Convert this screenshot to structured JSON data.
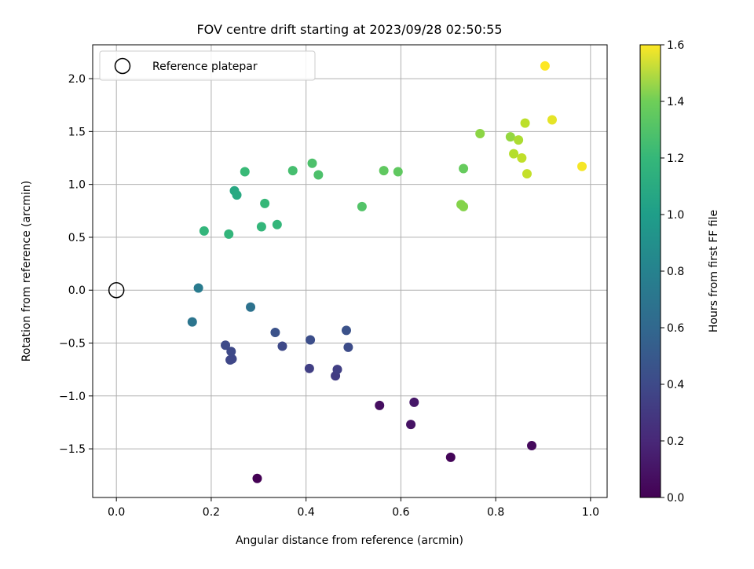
{
  "chart_data": {
    "type": "scatter",
    "title": "FOV centre drift starting at 2023/09/28 02:50:55",
    "xlabel": "Angular distance from reference (arcmin)",
    "ylabel": "Rotation from reference (arcmin)",
    "xlim": [
      -0.05,
      1.035
    ],
    "ylim": [
      -1.96,
      2.32
    ],
    "xticks": [
      0.0,
      0.2,
      0.4,
      0.6,
      0.8,
      1.0
    ],
    "xtick_labels": [
      "0.0",
      "0.2",
      "0.4",
      "0.6",
      "0.8",
      "1.0"
    ],
    "yticks": [
      -1.5,
      -1.0,
      -0.5,
      0.0,
      0.5,
      1.0,
      1.5,
      2.0
    ],
    "ytick_labels": [
      "−1.5",
      "−1.0",
      "−0.5",
      "0.0",
      "0.5",
      "1.0",
      "1.5",
      "2.0"
    ],
    "grid": true,
    "legend": {
      "position": "top-left",
      "label": "Reference platepar"
    },
    "reference_point": {
      "x": 0.0,
      "y": 0.0
    },
    "colorbar": {
      "label": "Hours from first FF file",
      "range": [
        0.0,
        1.6
      ],
      "ticks": [
        0.0,
        0.2,
        0.4,
        0.6,
        0.8,
        1.0,
        1.2,
        1.4,
        1.6
      ],
      "tick_labels": [
        "0.0",
        "0.2",
        "0.4",
        "0.6",
        "0.8",
        "1.0",
        "1.2",
        "1.4",
        "1.6"
      ],
      "colormap": "viridis"
    },
    "points": [
      {
        "x": 0.297,
        "y": -1.78,
        "c": 0.0
      },
      {
        "x": 0.705,
        "y": -1.58,
        "c": 0.02
      },
      {
        "x": 0.876,
        "y": -1.47,
        "c": 0.04
      },
      {
        "x": 0.555,
        "y": -1.09,
        "c": 0.06
      },
      {
        "x": 0.621,
        "y": -1.27,
        "c": 0.08
      },
      {
        "x": 0.628,
        "y": -1.06,
        "c": 0.1
      },
      {
        "x": 0.462,
        "y": -0.81,
        "c": 0.28
      },
      {
        "x": 0.466,
        "y": -0.75,
        "c": 0.3
      },
      {
        "x": 0.407,
        "y": -0.74,
        "c": 0.3
      },
      {
        "x": 0.244,
        "y": -0.65,
        "c": 0.34
      },
      {
        "x": 0.24,
        "y": -0.66,
        "c": 0.34
      },
      {
        "x": 0.242,
        "y": -0.58,
        "c": 0.35
      },
      {
        "x": 0.23,
        "y": -0.52,
        "c": 0.36
      },
      {
        "x": 0.35,
        "y": -0.53,
        "c": 0.35
      },
      {
        "x": 0.489,
        "y": -0.54,
        "c": 0.37
      },
      {
        "x": 0.409,
        "y": -0.47,
        "c": 0.38
      },
      {
        "x": 0.335,
        "y": -0.4,
        "c": 0.4
      },
      {
        "x": 0.485,
        "y": -0.38,
        "c": 0.4
      },
      {
        "x": 0.283,
        "y": -0.16,
        "c": 0.6
      },
      {
        "x": 0.16,
        "y": -0.3,
        "c": 0.62
      },
      {
        "x": 0.173,
        "y": 0.02,
        "c": 0.66
      },
      {
        "x": 0.249,
        "y": 0.94,
        "c": 0.96
      },
      {
        "x": 0.254,
        "y": 0.9,
        "c": 0.97
      },
      {
        "x": 0.185,
        "y": 0.56,
        "c": 1.05
      },
      {
        "x": 0.237,
        "y": 0.53,
        "c": 1.05
      },
      {
        "x": 0.306,
        "y": 0.6,
        "c": 1.06
      },
      {
        "x": 0.339,
        "y": 0.62,
        "c": 1.06
      },
      {
        "x": 0.313,
        "y": 0.82,
        "c": 1.07
      },
      {
        "x": 0.271,
        "y": 1.12,
        "c": 1.08
      },
      {
        "x": 0.372,
        "y": 1.13,
        "c": 1.12
      },
      {
        "x": 0.413,
        "y": 1.2,
        "c": 1.14
      },
      {
        "x": 0.426,
        "y": 1.09,
        "c": 1.14
      },
      {
        "x": 0.518,
        "y": 0.79,
        "c": 1.16
      },
      {
        "x": 0.564,
        "y": 1.13,
        "c": 1.2
      },
      {
        "x": 0.594,
        "y": 1.12,
        "c": 1.2
      },
      {
        "x": 0.732,
        "y": 1.15,
        "c": 1.22
      },
      {
        "x": 0.727,
        "y": 0.81,
        "c": 1.3
      },
      {
        "x": 0.732,
        "y": 0.79,
        "c": 1.3
      },
      {
        "x": 0.767,
        "y": 1.48,
        "c": 1.32
      },
      {
        "x": 0.831,
        "y": 1.45,
        "c": 1.34
      },
      {
        "x": 0.848,
        "y": 1.42,
        "c": 1.4
      },
      {
        "x": 0.838,
        "y": 1.29,
        "c": 1.42
      },
      {
        "x": 0.855,
        "y": 1.25,
        "c": 1.45
      },
      {
        "x": 0.862,
        "y": 1.58,
        "c": 1.44
      },
      {
        "x": 0.866,
        "y": 1.1,
        "c": 1.46
      },
      {
        "x": 0.919,
        "y": 1.61,
        "c": 1.54
      },
      {
        "x": 0.904,
        "y": 2.12,
        "c": 1.6
      },
      {
        "x": 0.982,
        "y": 1.17,
        "c": 1.58
      }
    ]
  }
}
